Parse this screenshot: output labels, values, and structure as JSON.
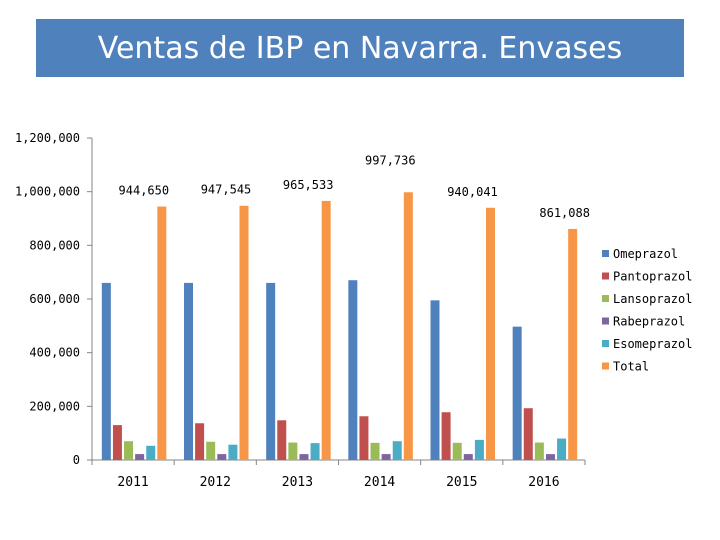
{
  "header": {
    "title": "Ventas de IBP en Navarra. Envases"
  },
  "chart_data": {
    "type": "bar",
    "title": "Ventas de IBP en Navarra. Envases",
    "xlabel": "",
    "ylabel": "",
    "categories": [
      "2011",
      "2012",
      "2013",
      "2014",
      "2015",
      "2016"
    ],
    "ylim": [
      0,
      1200000
    ],
    "yticks": [
      "0",
      "200,000",
      "400,000",
      "600,000",
      "800,000",
      "1,000,000",
      "1,200,000"
    ],
    "ytick_values": [
      0,
      200000,
      400000,
      600000,
      800000,
      1000000,
      1200000
    ],
    "legend_position": "right",
    "grid": false,
    "series": [
      {
        "name": "Omeprazol",
        "color": "#4f81bd",
        "values": [
          660000,
          660000,
          660000,
          670000,
          595000,
          497000
        ]
      },
      {
        "name": "Pantoprazol",
        "color": "#c0504d",
        "values": [
          130000,
          137000,
          148000,
          163000,
          178000,
          193000
        ]
      },
      {
        "name": "Lansoprazol",
        "color": "#9bbb59",
        "values": [
          70000,
          68000,
          65000,
          64000,
          64000,
          65000
        ]
      },
      {
        "name": "Rabeprazol",
        "color": "#8064a2",
        "values": [
          22000,
          22000,
          22000,
          22000,
          22000,
          22000
        ]
      },
      {
        "name": "Esomeprazol",
        "color": "#4bacc6",
        "values": [
          53000,
          57000,
          63000,
          70000,
          75000,
          80000
        ]
      },
      {
        "name": "Total",
        "color": "#f79646",
        "values": [
          944650,
          947545,
          965533,
          997736,
          940041,
          861088
        ]
      }
    ],
    "data_labels": [
      "944,650",
      "947,545",
      "965,533",
      "997,736",
      "940,041",
      "861,088"
    ]
  }
}
